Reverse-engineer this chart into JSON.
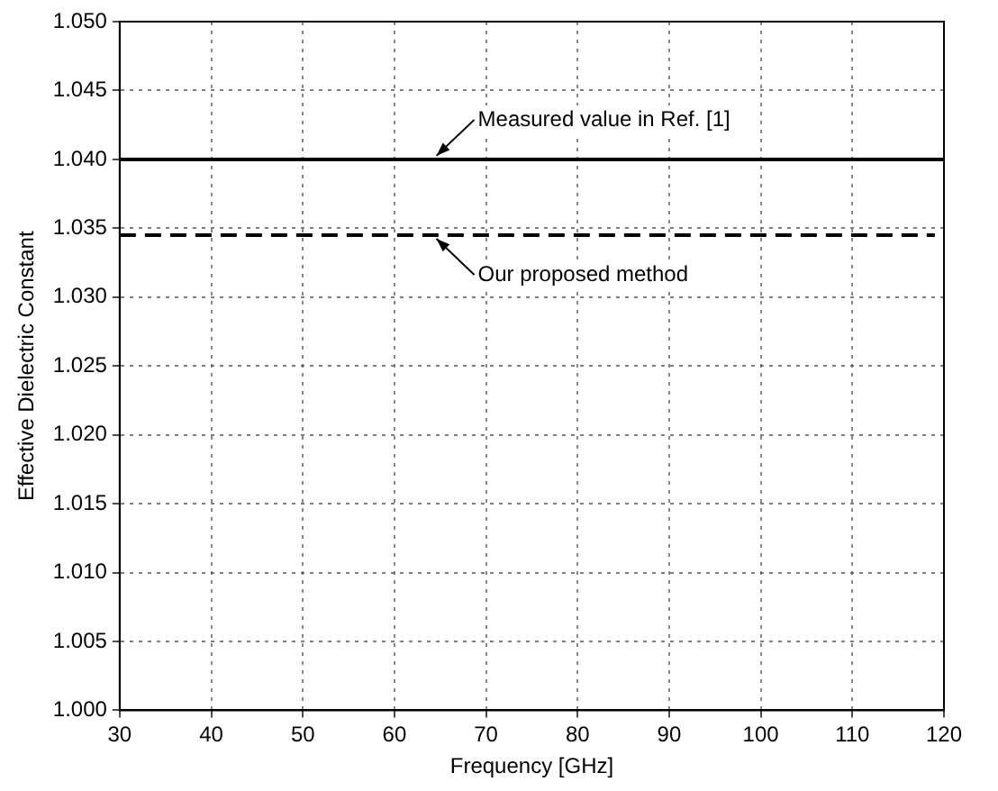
{
  "chart_data": {
    "type": "line",
    "xlabel": "Frequency [GHz]",
    "ylabel": "Effective Dielectric Constant",
    "xlim": [
      30,
      120
    ],
    "xticks": [
      30,
      40,
      50,
      60,
      70,
      80,
      90,
      100,
      110,
      120
    ],
    "ylim": [
      1.0,
      1.05
    ],
    "yticks": [
      {
        "value": 1.0,
        "label": "1.000"
      },
      {
        "value": 1.005,
        "label": "1.005"
      },
      {
        "value": 1.01,
        "label": "1.010"
      },
      {
        "value": 1.015,
        "label": "1.015"
      },
      {
        "value": 1.02,
        "label": "1.020"
      },
      {
        "value": 1.025,
        "label": "1.025"
      },
      {
        "value": 1.03,
        "label": "1.030"
      },
      {
        "value": 1.035,
        "label": "1.035"
      },
      {
        "value": 1.04,
        "label": "1.040"
      },
      {
        "value": 1.045,
        "label": "1.045"
      },
      {
        "value": 1.05,
        "label": "1.050"
      }
    ],
    "grid": true,
    "marker": "none",
    "series": [
      {
        "color": "#000000",
        "x": [
          30,
          120
        ],
        "values": [
          1.04,
          1.04
        ],
        "line_style": "solid"
      },
      {
        "color": "#000000",
        "x": [
          30,
          119
        ],
        "values": [
          1.0345,
          1.0345
        ],
        "line_style": "dashed"
      }
    ],
    "annotations": [
      {
        "text": "Measured value in Ref. [1]",
        "x": 64,
        "y": 1.04
      },
      {
        "text": "Our proposed method",
        "x": 64,
        "y": 1.0345
      }
    ]
  }
}
